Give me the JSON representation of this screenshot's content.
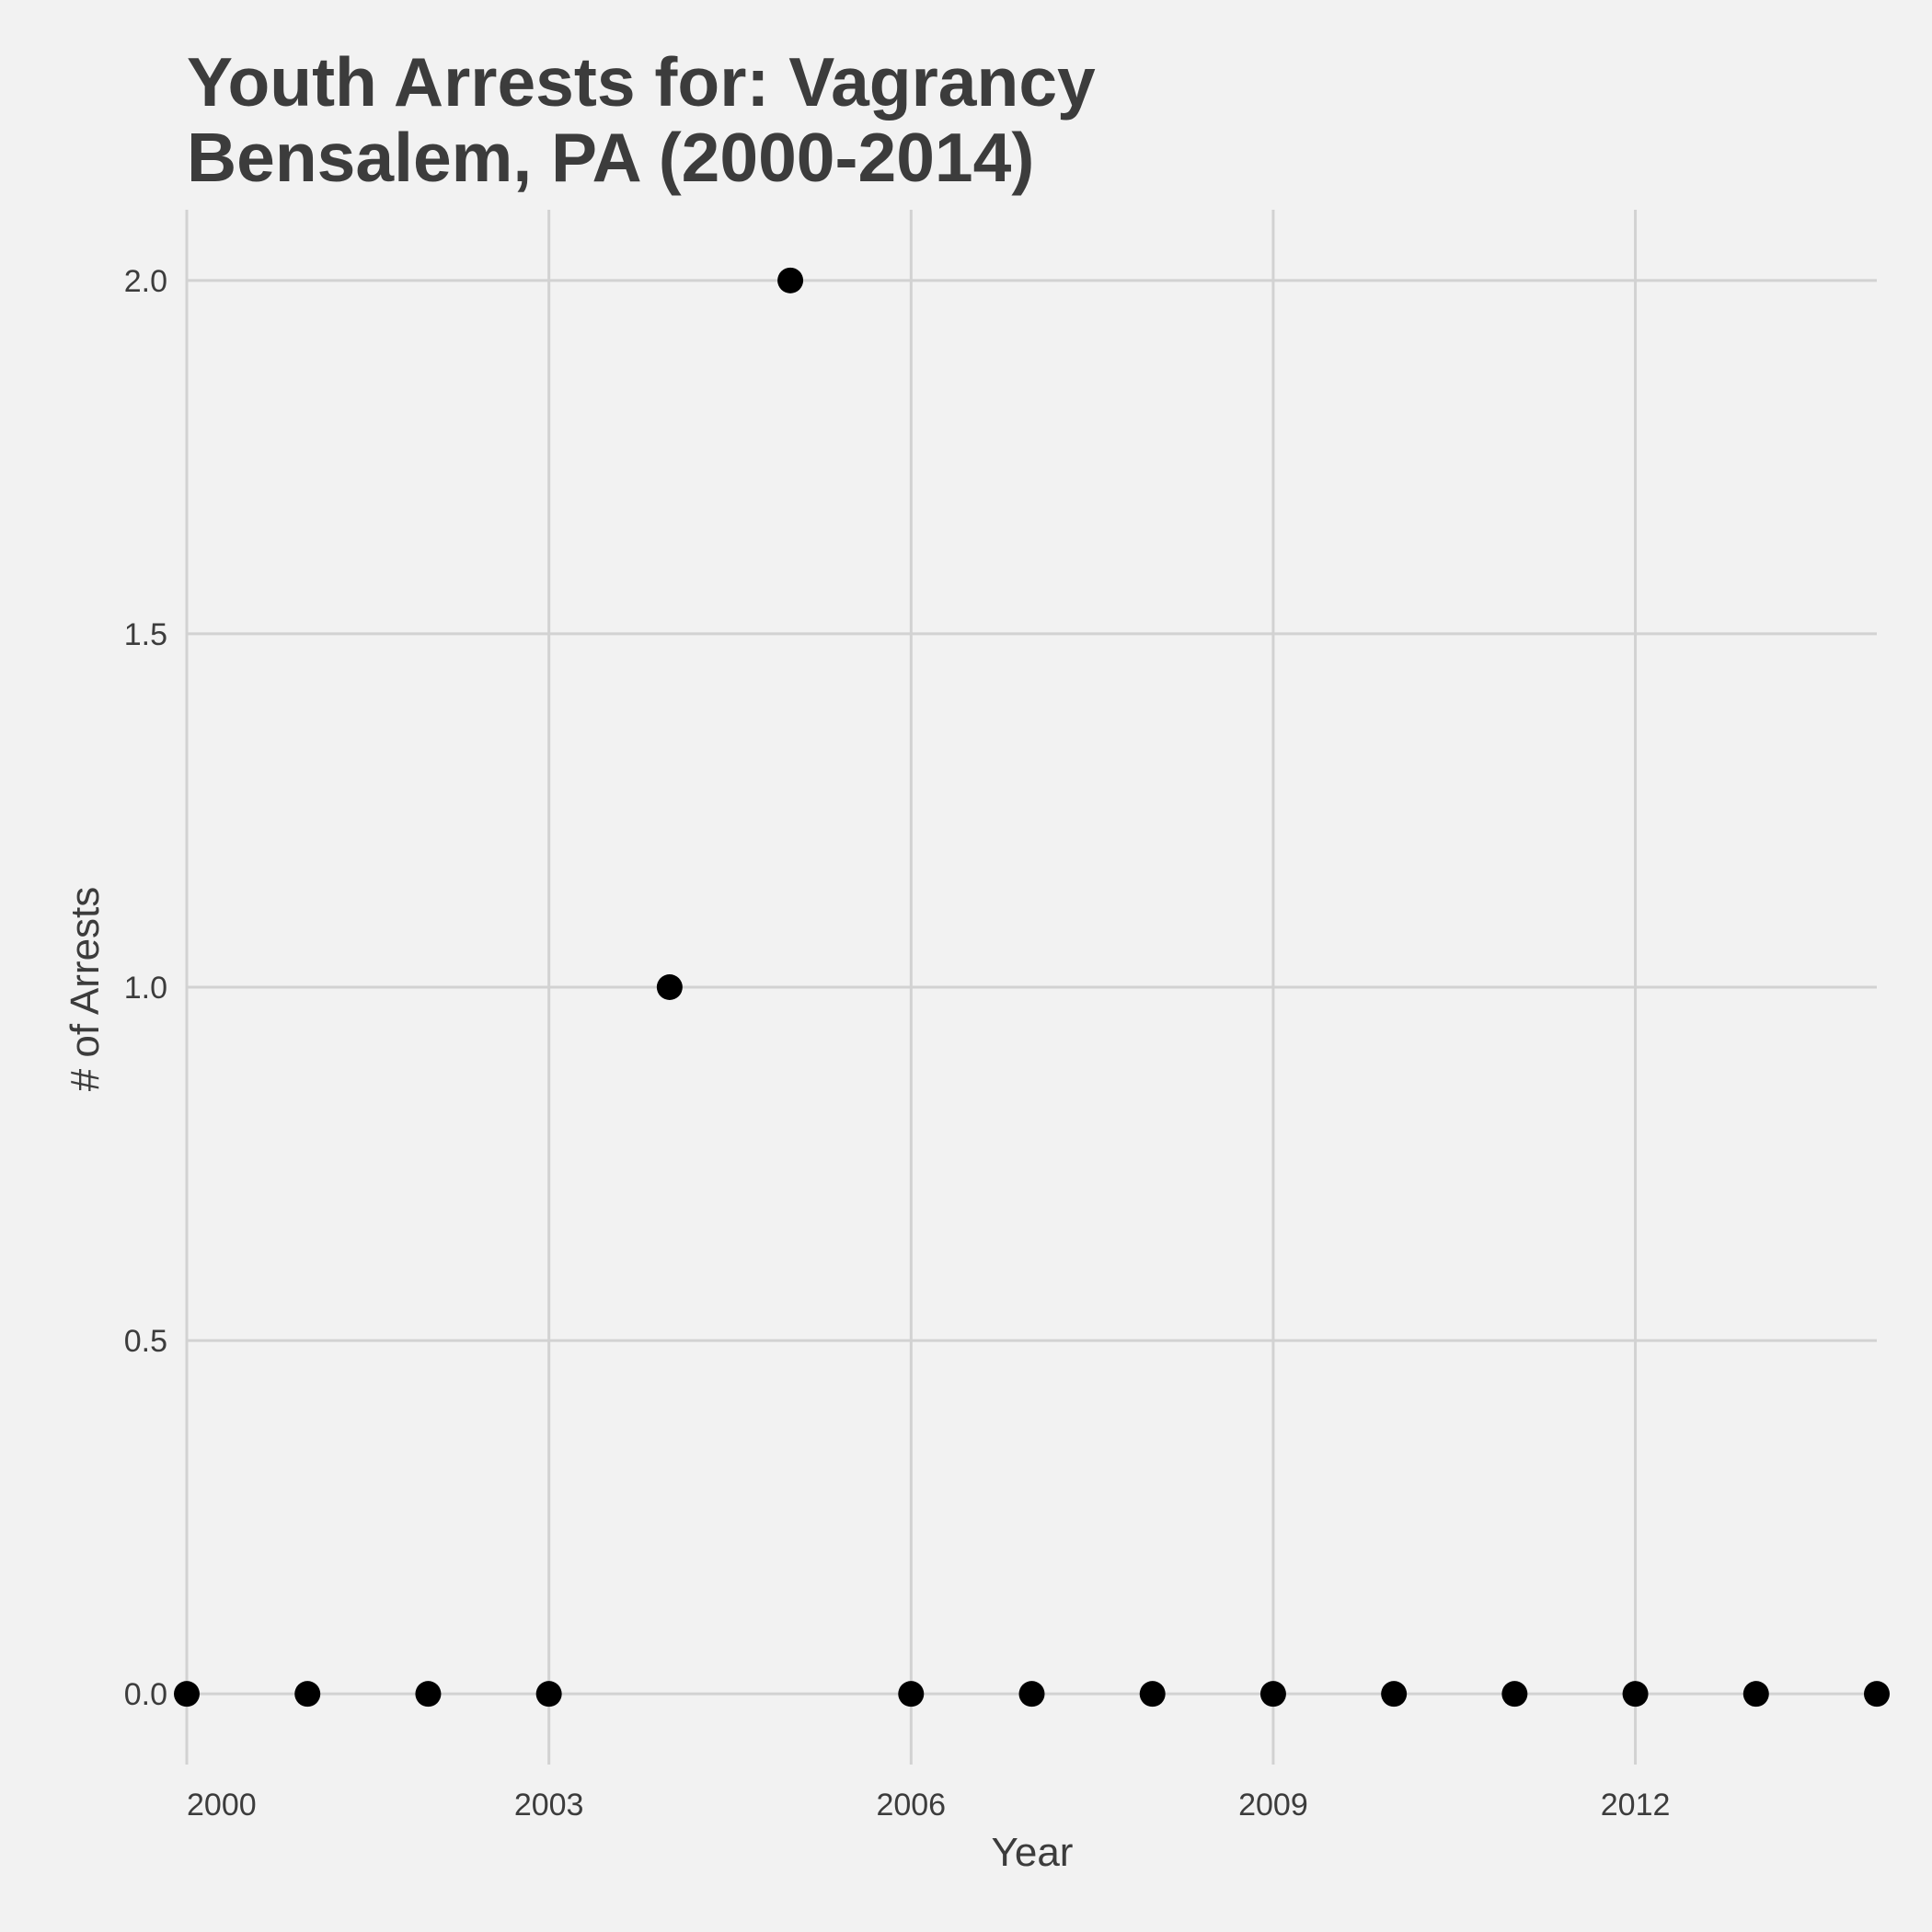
{
  "chart_data": {
    "type": "scatter",
    "title": "Youth Arrests for: Vagrancy",
    "subtitle": "Bensalem, PA (2000-2014)",
    "xlabel": "Year",
    "ylabel": "# of Arrests",
    "x": [
      2000,
      2001,
      2002,
      2003,
      2004,
      2005,
      2006,
      2007,
      2008,
      2009,
      2010,
      2011,
      2012,
      2013,
      2014
    ],
    "values": [
      0,
      0,
      0,
      0,
      1,
      2,
      0,
      0,
      0,
      0,
      0,
      0,
      0,
      0,
      0
    ],
    "xlim": [
      2000,
      2014
    ],
    "ylim": [
      -0.1,
      2.1
    ],
    "x_ticks": [
      2000,
      2003,
      2006,
      2009,
      2012
    ],
    "x_tick_labels": [
      "2000",
      "2003",
      "2006",
      "2009",
      "2012"
    ],
    "y_ticks": [
      0,
      0.5,
      1,
      1.5,
      2
    ],
    "y_tick_labels": [
      "0.0",
      "0.5",
      "1.0",
      "1.5",
      "2.0"
    ],
    "grid": true,
    "legend": "none",
    "point_color": "#000000",
    "grid_color": "#d2d2d2",
    "background_color": "#f2f2f2"
  }
}
